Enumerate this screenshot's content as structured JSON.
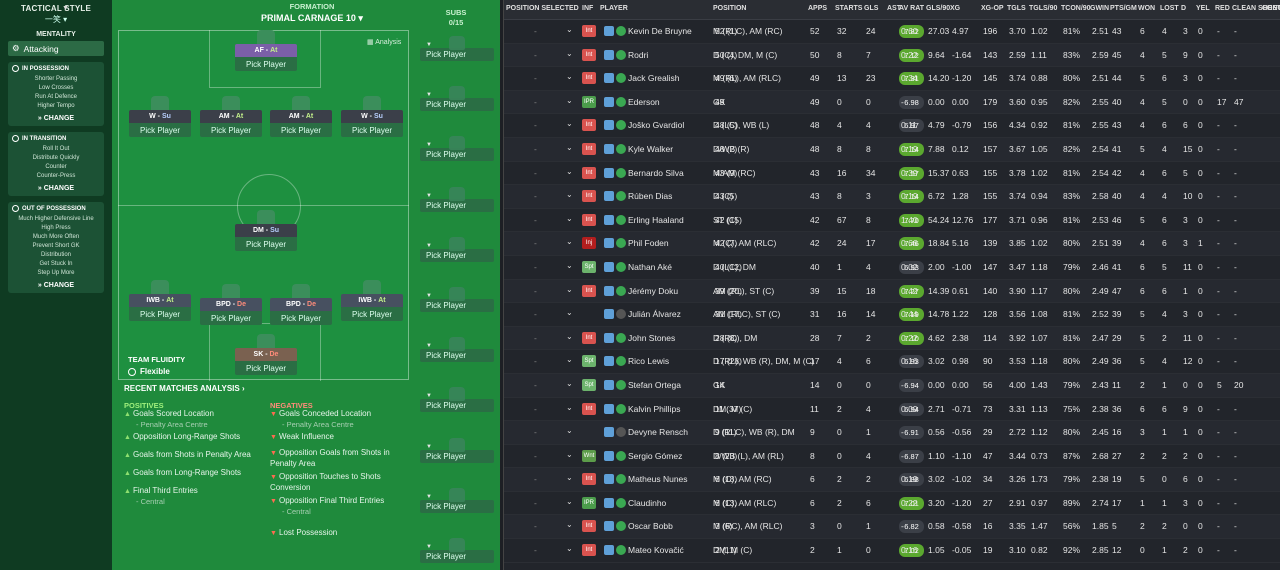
{
  "tactics": {
    "title": "TACTICAL STYLE",
    "style": "一笑",
    "mentality_label": "MENTALITY",
    "mentality": "Attacking",
    "boxes": [
      {
        "head": "IN POSSESSION",
        "items": [
          "Shorter Passing",
          "Low Crosses",
          "Run At Defence",
          "Higher Tempo"
        ],
        "change": "CHANGE"
      },
      {
        "head": "IN TRANSITION",
        "items": [
          "Roll It Out",
          "Distribute Quickly",
          "Counter",
          "Counter-Press"
        ],
        "change": "CHANGE"
      },
      {
        "head": "OUT OF POSSESSION",
        "items": [
          "Much Higher Defensive Line",
          "High Press",
          "Much More Often",
          "Prevent Short GK",
          "Distribution",
          "Get Stuck In",
          "Step Up More"
        ],
        "change": "CHANGE"
      }
    ]
  },
  "formation": {
    "label": "FORMATION",
    "name": "PRIMAL CARNAGE 10",
    "analysis": "Analysis",
    "pick": "Pick Player",
    "players": [
      {
        "pos": "AF",
        "role": "At",
        "cls": "b-a",
        "rc": ""
      },
      {
        "pos": "W",
        "role": "Su",
        "cls": "b-m",
        "rc": "s"
      },
      {
        "pos": "AM",
        "role": "At",
        "cls": "b-m",
        "rc": ""
      },
      {
        "pos": "AM",
        "role": "At",
        "cls": "b-m",
        "rc": ""
      },
      {
        "pos": "W",
        "role": "Su",
        "cls": "b-m",
        "rc": "s"
      },
      {
        "pos": "DM",
        "role": "Su",
        "cls": "b-m",
        "rc": "s"
      },
      {
        "pos": "IWB",
        "role": "At",
        "cls": "b-d",
        "rc": ""
      },
      {
        "pos": "BPD",
        "role": "De",
        "cls": "b-d",
        "rc": "d"
      },
      {
        "pos": "BPD",
        "role": "De",
        "cls": "b-d",
        "rc": "d"
      },
      {
        "pos": "IWB",
        "role": "At",
        "cls": "b-d",
        "rc": ""
      },
      {
        "pos": "SK",
        "role": "De",
        "cls": "b-k",
        "rc": "d"
      }
    ]
  },
  "subs": {
    "label": "SUBS",
    "count": "0/15",
    "pick": "Pick Player"
  },
  "fluidity": {
    "label": "TEAM FLUIDITY",
    "value": "Flexible"
  },
  "recent": {
    "title": "RECENT MATCHES ANALYSIS ›",
    "pos_label": "POSITIVES",
    "neg_label": "NEGATIVES",
    "positives": [
      {
        "t": "Goals Scored Location",
        "s": "- Penalty Area Centre"
      },
      {
        "t": "Opposition Long-Range Shots",
        "s": ""
      },
      {
        "t": "Goals from Shots in Penalty Area",
        "s": ""
      },
      {
        "t": "Goals from Long-Range Shots",
        "s": ""
      },
      {
        "t": "Final Third Entries",
        "s": "- Central"
      }
    ],
    "negatives": [
      {
        "t": "Goals Conceded Location",
        "s": "- Penalty Area Centre"
      },
      {
        "t": "Weak Influence",
        "s": ""
      },
      {
        "t": "Opposition Goals from Shots in Penalty Area",
        "s": ""
      },
      {
        "t": "Opposition Touches to Shots Conversion",
        "s": ""
      },
      {
        "t": "Opposition Final Third Entries",
        "s": "- Central"
      },
      {
        "t": "Lost Possession",
        "s": ""
      }
    ]
  },
  "table": {
    "headers": [
      "POSITION SELECTED",
      "INF",
      "PLAYER",
      "POSITION",
      "APPS",
      "STARTS",
      "GLS",
      "AST",
      "AV RAT",
      "GLS/90",
      "XG",
      "XG-OP",
      "TGLS",
      "TGLS/90",
      "TCON/90",
      "GWIN",
      "PTS/GM",
      "WON",
      "LOST",
      "D",
      "YEL",
      "RED",
      "CLEAN SHEETS",
      "CONC"
    ],
    "rows": [
      [
        "Int",
        "g",
        "Kevin De Bruyne",
        "M (RLC), AM (RC)",
        "52 (1)",
        "52",
        "32",
        "24",
        "7.82",
        "0.60",
        "27.03",
        "4.97",
        "196",
        "3.70",
        "1.02",
        "81%",
        "2.51",
        "43",
        "6",
        "4",
        "3",
        "0",
        "-",
        "-"
      ],
      [
        "Int",
        "g",
        "Rodri",
        "D (C), DM, M (C)",
        "50 (4)",
        "50",
        "8",
        "7",
        "7.12",
        "0.22",
        "9.64",
        "-1.64",
        "143",
        "2.59",
        "1.11",
        "83%",
        "2.59",
        "45",
        "4",
        "5",
        "9",
        "0",
        "-",
        "-"
      ],
      [
        "Int",
        "g",
        "Jack Grealish",
        "M (RL), AM (RLC)",
        "49 (6)",
        "49",
        "13",
        "23",
        "7.31",
        "0.34",
        "14.20",
        "-1.20",
        "145",
        "3.74",
        "0.88",
        "80%",
        "2.51",
        "44",
        "5",
        "6",
        "3",
        "0",
        "-",
        "-"
      ],
      [
        "IPR",
        "g",
        "Ederson",
        "GK",
        "49",
        "49",
        "0",
        "0",
        "6.98",
        "-",
        "0.00",
        "0.00",
        "179",
        "3.60",
        "0.95",
        "82%",
        "2.55",
        "40",
        "4",
        "5",
        "0",
        "0",
        "17",
        "47"
      ],
      [
        "Int",
        "g",
        "Joško Gvardiol",
        "D (LC), WB (L)",
        "48 (5)",
        "48",
        "4",
        "4",
        "6.97",
        "0.11",
        "4.79",
        "-0.79",
        "156",
        "4.34",
        "0.92",
        "81%",
        "2.55",
        "43",
        "4",
        "6",
        "6",
        "0",
        "-",
        "-"
      ],
      [
        "Int",
        "g",
        "Kyle Walker",
        "D/WB (R)",
        "48 (2)",
        "48",
        "8",
        "8",
        "7.14",
        "0.19",
        "7.88",
        "0.12",
        "157",
        "3.67",
        "1.05",
        "82%",
        "2.54",
        "41",
        "5",
        "4",
        "15",
        "0",
        "-",
        "-"
      ],
      [
        "Int",
        "g",
        "Bernardo Silva",
        "M/AM (RC)",
        "43 (9)",
        "43",
        "16",
        "34",
        "7.57",
        "0.39",
        "15.37",
        "0.63",
        "155",
        "3.78",
        "1.02",
        "81%",
        "2.54",
        "42",
        "4",
        "6",
        "5",
        "0",
        "-",
        "-"
      ],
      [
        "Int",
        "g",
        "Rúben Dias",
        "D (C)",
        "43 (5)",
        "43",
        "8",
        "3",
        "7.14",
        "0.19",
        "6.72",
        "1.28",
        "155",
        "3.74",
        "0.94",
        "83%",
        "2.58",
        "40",
        "4",
        "4",
        "10",
        "0",
        "-",
        "-"
      ],
      [
        "Int",
        "g",
        "Erling Haaland",
        "ST (C)",
        "42 (15)",
        "42",
        "67",
        "8",
        "7.70",
        "1.40",
        "54.24",
        "12.76",
        "177",
        "3.71",
        "0.96",
        "81%",
        "2.53",
        "46",
        "5",
        "6",
        "3",
        "0",
        "-",
        "-"
      ],
      [
        "Inj",
        "g",
        "Phil Foden",
        "M (C), AM (RLC)",
        "42 (7)",
        "42",
        "24",
        "17",
        "7.46",
        "0.66",
        "18.84",
        "5.16",
        "139",
        "3.85",
        "1.02",
        "80%",
        "2.51",
        "39",
        "4",
        "6",
        "3",
        "1",
        "-",
        "-"
      ],
      [
        "Spt",
        "g",
        "Nathan Aké",
        "D (LC), DM",
        "40 (12)",
        "40",
        "1",
        "4",
        "6.93",
        "0.02",
        "2.00",
        "-1.00",
        "147",
        "3.47",
        "1.18",
        "79%",
        "2.46",
        "41",
        "6",
        "5",
        "11",
        "0",
        "-",
        "-"
      ],
      [
        "Int",
        "g",
        "Jérémy Doku",
        "AM (RL), ST (C)",
        "39 (20)",
        "39",
        "15",
        "18",
        "7.27",
        "0.42",
        "14.39",
        "0.61",
        "140",
        "3.90",
        "1.17",
        "80%",
        "2.49",
        "47",
        "6",
        "6",
        "1",
        "0",
        "-",
        "-"
      ],
      [
        "",
        "",
        "Julián Álvarez",
        "AM (RLC), ST (C)",
        "31 (17)",
        "31",
        "16",
        "14",
        "7.19",
        "0.44",
        "14.78",
        "1.22",
        "128",
        "3.56",
        "1.08",
        "81%",
        "2.52",
        "39",
        "5",
        "4",
        "3",
        "0",
        "-",
        "-"
      ],
      [
        "Int",
        "g",
        "John Stones",
        "D (RC), DM",
        "28 (8)",
        "28",
        "7",
        "2",
        "7.10",
        "0.22",
        "4.62",
        "2.38",
        "114",
        "3.92",
        "1.07",
        "81%",
        "2.47",
        "29",
        "5",
        "2",
        "11",
        "0",
        "-",
        "-"
      ],
      [
        "Spt",
        "g",
        "Rico Lewis",
        "D (RL), WB (R), DM, M (C)",
        "17 (28)",
        "17",
        "4",
        "6",
        "6.93",
        "0.16",
        "3.02",
        "0.98",
        "90",
        "3.53",
        "1.18",
        "80%",
        "2.49",
        "36",
        "5",
        "4",
        "12",
        "0",
        "-",
        "-"
      ],
      [
        "Spt",
        "g",
        "Stefan Ortega",
        "GK",
        "14",
        "14",
        "0",
        "0",
        "6.94",
        "-",
        "0.00",
        "0.00",
        "56",
        "4.00",
        "1.43",
        "79%",
        "2.43",
        "11",
        "2",
        "1",
        "0",
        "0",
        "5",
        "20"
      ],
      [
        "Int",
        "g",
        "Kalvin Phillips",
        "DM, M (C)",
        "11 (37)",
        "11",
        "2",
        "4",
        "6.94",
        "0.09",
        "2.71",
        "-0.71",
        "73",
        "3.31",
        "1.13",
        "75%",
        "2.38",
        "36",
        "6",
        "6",
        "9",
        "0",
        "-",
        "-"
      ],
      [
        "",
        "",
        "Devyne Rensch",
        "D (RLC), WB (R), DM",
        "9 (11)",
        "9",
        "0",
        "1",
        "6.91",
        "-",
        "0.56",
        "-0.56",
        "29",
        "2.72",
        "1.12",
        "80%",
        "2.45",
        "16",
        "3",
        "1",
        "1",
        "0",
        "-",
        "-"
      ],
      [
        "Wnt",
        "g",
        "Sergio Gómez",
        "D/WB (L), AM (RL)",
        "8 (23)",
        "8",
        "0",
        "4",
        "6.87",
        "-",
        "1.10",
        "-1.10",
        "47",
        "3.44",
        "0.73",
        "87%",
        "2.68",
        "27",
        "2",
        "2",
        "2",
        "0",
        "-",
        "-"
      ],
      [
        "Int",
        "g",
        "Matheus Nunes",
        "M (C), AM (RC)",
        "6 (18)",
        "6",
        "2",
        "2",
        "6.88",
        "0.19",
        "3.02",
        "-1.02",
        "34",
        "3.26",
        "1.73",
        "79%",
        "2.38",
        "19",
        "5",
        "0",
        "6",
        "0",
        "-",
        "-"
      ],
      [
        "IPR",
        "g",
        "Claudinho",
        "M (C), AM (RLC)",
        "6 (13)",
        "6",
        "2",
        "6",
        "7.01",
        "0.22",
        "3.20",
        "-1.20",
        "27",
        "2.91",
        "0.97",
        "89%",
        "2.74",
        "17",
        "1",
        "1",
        "3",
        "0",
        "-",
        "-"
      ],
      [
        "Int",
        "g",
        "Oscar Bobb",
        "M (RC), AM (RLC)",
        "3 (6)",
        "3",
        "0",
        "1",
        "6.82",
        "-",
        "0.58",
        "-0.58",
        "16",
        "3.35",
        "1.47",
        "56%",
        "1.85",
        "5",
        "2",
        "2",
        "0",
        "0",
        "-",
        "-"
      ],
      [
        "Int",
        "g",
        "Mateo Kovačić",
        "DM, M (C)",
        "2 (11)",
        "2",
        "1",
        "0",
        "7.02",
        "0.16",
        "1.05",
        "-0.05",
        "19",
        "3.10",
        "0.82",
        "92%",
        "2.85",
        "12",
        "0",
        "1",
        "2",
        "0",
        "-",
        "-"
      ]
    ]
  }
}
